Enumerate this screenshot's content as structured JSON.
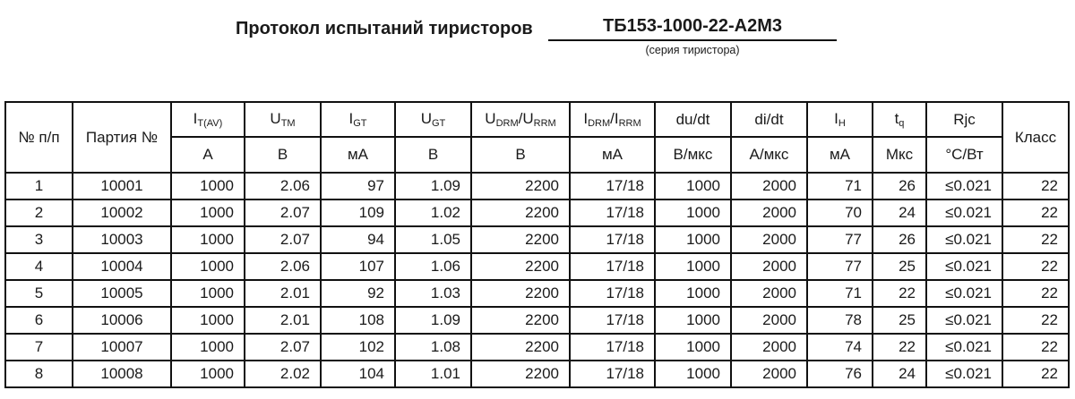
{
  "page": {
    "title": "Протокол испытаний тиристоров",
    "model": "ТБ153-1000-22-А2М3",
    "model_caption": "(серия тиристора)"
  },
  "colors": {
    "background": "#ffffff",
    "line": "#111111",
    "text": "#1a1a1a"
  },
  "table": {
    "columns": [
      {
        "label": "№ п/п"
      },
      {
        "label": "Партия №"
      },
      {
        "sym": {
          "m1": "I",
          "s1": "T(AV)"
        },
        "unit": "А"
      },
      {
        "sym": {
          "m1": "U",
          "s1": "TM"
        },
        "unit": "В"
      },
      {
        "sym": {
          "m1": "I",
          "s1": "GT"
        },
        "unit": "мА"
      },
      {
        "sym": {
          "m1": "U",
          "s1": "GT"
        },
        "unit": "В"
      },
      {
        "sym": {
          "m1": "U",
          "s1": "DRM",
          "m2": "/U",
          "s2": "RRM"
        },
        "unit": "В"
      },
      {
        "sym": {
          "m1": "I",
          "s1": "DRM",
          "m2": "/I",
          "s2": "RRM"
        },
        "unit": "мА"
      },
      {
        "sym": {
          "m1": "du/dt"
        },
        "unit": "В/мкс"
      },
      {
        "sym": {
          "m1": "di/dt"
        },
        "unit": "А/мкс"
      },
      {
        "sym": {
          "m1": "I",
          "s1": "H"
        },
        "unit": "мА"
      },
      {
        "sym": {
          "m1": "t",
          "s1": "q"
        },
        "unit": "Мкс"
      },
      {
        "sym": {
          "m1": "Rjc"
        },
        "unit": "°С/Вт"
      },
      {
        "label": "Класс"
      }
    ],
    "rows": [
      [
        "1",
        "10001",
        "1000",
        "2.06",
        "97",
        "1.09",
        "2200",
        "17/18",
        "1000",
        "2000",
        "71",
        "26",
        "≤0.021",
        "22"
      ],
      [
        "2",
        "10002",
        "1000",
        "2.07",
        "109",
        "1.02",
        "2200",
        "17/18",
        "1000",
        "2000",
        "70",
        "24",
        "≤0.021",
        "22"
      ],
      [
        "3",
        "10003",
        "1000",
        "2.07",
        "94",
        "1.05",
        "2200",
        "17/18",
        "1000",
        "2000",
        "77",
        "26",
        "≤0.021",
        "22"
      ],
      [
        "4",
        "10004",
        "1000",
        "2.06",
        "107",
        "1.06",
        "2200",
        "17/18",
        "1000",
        "2000",
        "77",
        "25",
        "≤0.021",
        "22"
      ],
      [
        "5",
        "10005",
        "1000",
        "2.01",
        "92",
        "1.03",
        "2200",
        "17/18",
        "1000",
        "2000",
        "71",
        "22",
        "≤0.021",
        "22"
      ],
      [
        "6",
        "10006",
        "1000",
        "2.01",
        "108",
        "1.09",
        "2200",
        "17/18",
        "1000",
        "2000",
        "78",
        "25",
        "≤0.021",
        "22"
      ],
      [
        "7",
        "10007",
        "1000",
        "2.07",
        "102",
        "1.08",
        "2200",
        "17/18",
        "1000",
        "2000",
        "74",
        "22",
        "≤0.021",
        "22"
      ],
      [
        "8",
        "10008",
        "1000",
        "2.02",
        "104",
        "1.01",
        "2200",
        "17/18",
        "1000",
        "2000",
        "76",
        "24",
        "≤0.021",
        "22"
      ]
    ]
  }
}
